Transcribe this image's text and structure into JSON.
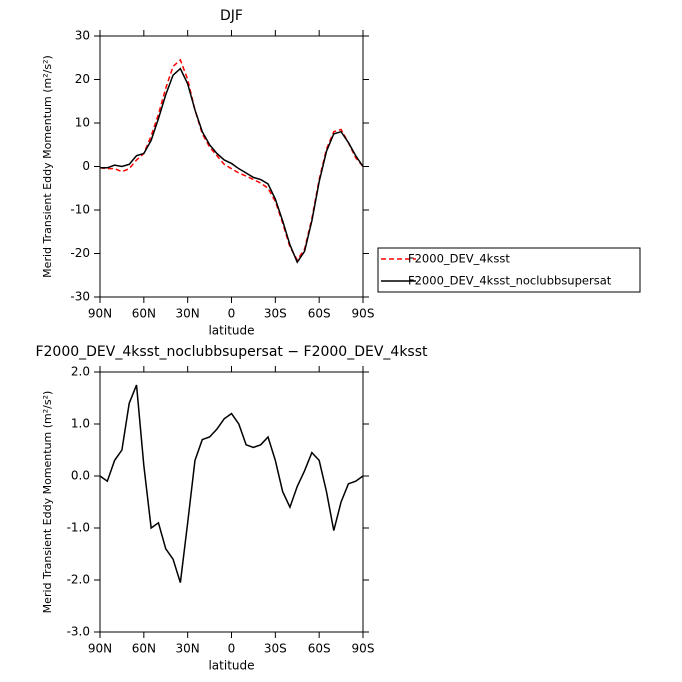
{
  "chart_data": [
    {
      "type": "line",
      "title": "DJF",
      "xlabel": "latitude",
      "ylabel": "Merid Transient Eddy Momentum (m²/s²)",
      "x": [
        90,
        85,
        80,
        75,
        70,
        65,
        60,
        55,
        50,
        45,
        40,
        35,
        30,
        25,
        20,
        15,
        10,
        5,
        0,
        -5,
        -10,
        -15,
        -20,
        -25,
        -30,
        -35,
        -40,
        -45,
        -50,
        -55,
        -60,
        -65,
        -70,
        -75,
        -80,
        -85,
        -90
      ],
      "series": [
        {
          "name": "F2000_DEV_4ksst",
          "color": "#ff0000",
          "linestyle": "dashed",
          "values": [
            -0.3,
            -0.5,
            -0.5,
            -1.2,
            -0.5,
            1.5,
            3,
            7,
            12,
            18,
            23,
            24.5,
            20,
            13,
            7.5,
            4.5,
            2.5,
            0.5,
            -0.5,
            -1.5,
            -2.2,
            -3,
            -3.8,
            -5,
            -8,
            -13,
            -18.5,
            -21.5,
            -19,
            -12,
            -3,
            4,
            8,
            8.5,
            5.5,
            2,
            0
          ]
        },
        {
          "name": "F2000_DEV_4ksst_noclubbsupersat",
          "color": "#000000",
          "linestyle": "solid",
          "values": [
            -0.3,
            -0.3,
            0.3,
            0,
            0.5,
            2.5,
            3,
            6,
            11,
            16.5,
            21,
            22.5,
            19,
            13,
            8,
            5,
            3,
            1.5,
            0.7,
            -0.5,
            -1.5,
            -2.5,
            -3,
            -4,
            -7.5,
            -12.5,
            -18,
            -22,
            -19.5,
            -12.5,
            -3.5,
            3.5,
            7.5,
            8,
            5.5,
            2.5,
            0
          ]
        }
      ],
      "xlim": [
        90,
        -90
      ],
      "xticks": [
        {
          "value": 90,
          "label": "90N"
        },
        {
          "value": 60,
          "label": "60N"
        },
        {
          "value": 30,
          "label": "30N"
        },
        0,
        {
          "value": -30,
          "label": "30S"
        },
        {
          "value": -60,
          "label": "60S"
        },
        {
          "value": -90,
          "label": "90S"
        }
      ],
      "ylim": [
        -30,
        30
      ],
      "yticks": [
        -30,
        -20,
        -10,
        0,
        10,
        20,
        30
      ],
      "legend": "right"
    },
    {
      "type": "line",
      "title": "F2000_DEV_4ksst_noclubbsupersat − F2000_DEV_4ksst",
      "xlabel": "latitude",
      "ylabel": "Merid Transient Eddy Momentum (m²/s²)",
      "x": [
        90,
        85,
        80,
        75,
        70,
        65,
        60,
        55,
        50,
        45,
        40,
        35,
        30,
        25,
        20,
        15,
        10,
        5,
        0,
        -5,
        -10,
        -15,
        -20,
        -25,
        -30,
        -35,
        -40,
        -45,
        -50,
        -55,
        -60,
        -65,
        -70,
        -75,
        -80,
        -85,
        -90
      ],
      "series": [
        {
          "color": "#000000",
          "linestyle": "solid",
          "values": [
            0,
            -0.1,
            0.3,
            0.5,
            1.4,
            1.75,
            0.2,
            -1.0,
            -0.9,
            -1.4,
            -1.6,
            -2.05,
            -0.9,
            0.3,
            0.7,
            0.75,
            0.9,
            1.1,
            1.2,
            1.0,
            0.6,
            0.55,
            0.6,
            0.75,
            0.3,
            -0.3,
            -0.6,
            -0.2,
            0.1,
            0.45,
            0.3,
            -0.3,
            -1.05,
            -0.5,
            -0.15,
            -0.1,
            0
          ]
        }
      ],
      "xlim": [
        90,
        -90
      ],
      "xticks": [
        {
          "value": 90,
          "label": "90N"
        },
        {
          "value": 60,
          "label": "60N"
        },
        {
          "value": 30,
          "label": "30N"
        },
        0,
        {
          "value": -30,
          "label": "30S"
        },
        {
          "value": -60,
          "label": "60S"
        },
        {
          "value": -90,
          "label": "90S"
        }
      ],
      "ylim": [
        -3,
        2
      ],
      "yticks": [
        {
          "value": -3,
          "label": "-3.0"
        },
        {
          "value": -2,
          "label": "-2.0"
        },
        {
          "value": -1,
          "label": "-1.0"
        },
        {
          "value": 0,
          "label": "0.0"
        },
        {
          "value": 1,
          "label": "1.0"
        },
        {
          "value": 2,
          "label": "2.0"
        }
      ]
    }
  ]
}
